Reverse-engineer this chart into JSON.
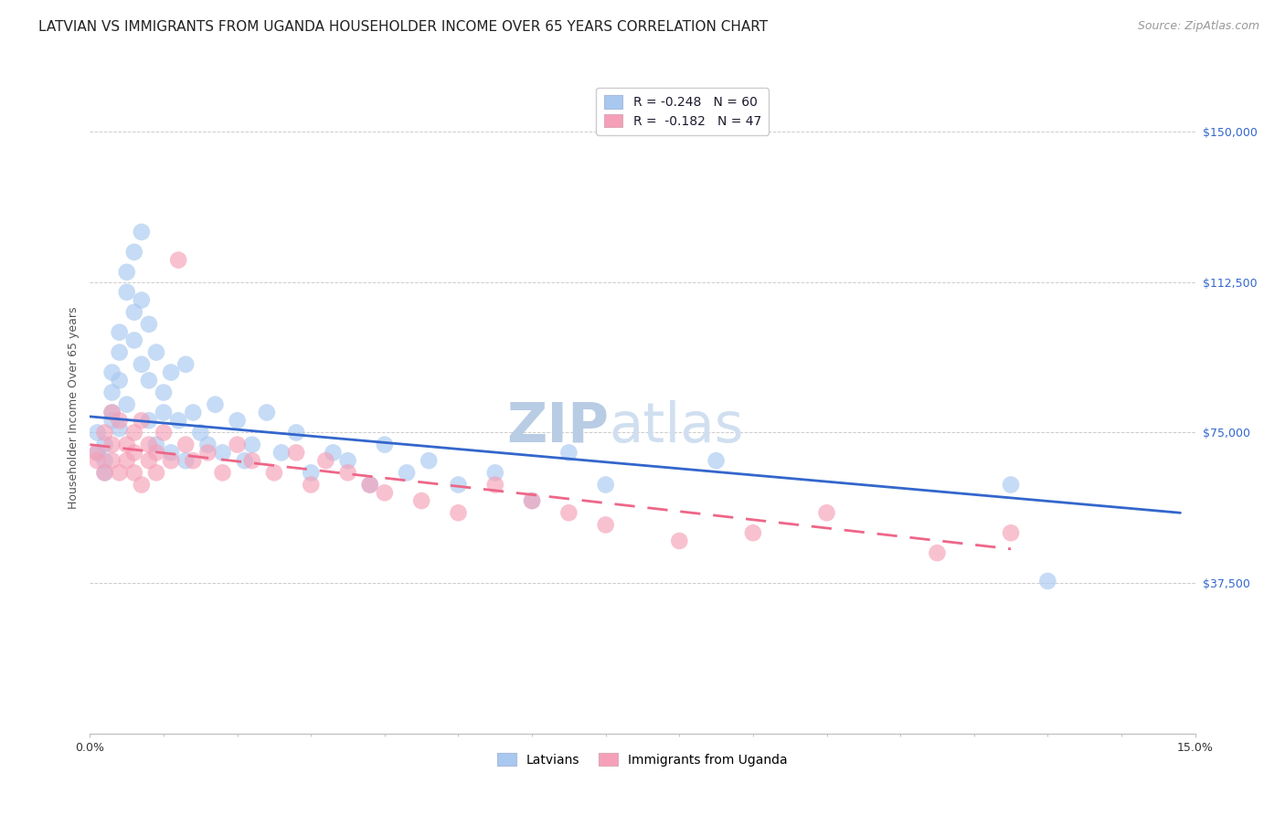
{
  "title": "LATVIAN VS IMMIGRANTS FROM UGANDA HOUSEHOLDER INCOME OVER 65 YEARS CORRELATION CHART",
  "source": "Source: ZipAtlas.com",
  "ylabel": "Householder Income Over 65 years",
  "xlim": [
    0.0,
    0.15
  ],
  "ylim": [
    0,
    162500
  ],
  "yticks": [
    37500,
    75000,
    112500,
    150000
  ],
  "ytick_labels": [
    "$37,500",
    "$75,000",
    "$112,500",
    "$150,000"
  ],
  "color_blue": "#A8C8F0",
  "color_pink": "#F5A0B8",
  "line_color_blue": "#3366CC",
  "line_color_pink": "#EE6688",
  "legend1_r": "R = -0.248",
  "legend1_n": "N = 60",
  "legend2_r": "R =  -0.182",
  "legend2_n": "N = 47",
  "legend_series1": "Latvians",
  "legend_series2": "Immigrants from Uganda",
  "watermark_zip": "ZIP",
  "watermark_atlas": "atlas",
  "title_fontsize": 11,
  "axis_label_fontsize": 9,
  "tick_fontsize": 9,
  "legend_fontsize": 10,
  "source_fontsize": 9,
  "watermark_fontsize": 44,
  "watermark_color": "#D0E4F5",
  "background_color": "#FFFFFF",
  "grid_color": "#CCCCCC",
  "latvian_x": [
    0.001,
    0.001,
    0.002,
    0.002,
    0.002,
    0.003,
    0.003,
    0.003,
    0.003,
    0.004,
    0.004,
    0.004,
    0.004,
    0.005,
    0.005,
    0.005,
    0.006,
    0.006,
    0.006,
    0.007,
    0.007,
    0.007,
    0.008,
    0.008,
    0.008,
    0.009,
    0.009,
    0.01,
    0.01,
    0.011,
    0.011,
    0.012,
    0.013,
    0.013,
    0.014,
    0.015,
    0.016,
    0.017,
    0.018,
    0.02,
    0.021,
    0.022,
    0.024,
    0.026,
    0.028,
    0.03,
    0.033,
    0.035,
    0.038,
    0.04,
    0.043,
    0.046,
    0.05,
    0.055,
    0.06,
    0.065,
    0.07,
    0.085,
    0.125,
    0.13
  ],
  "latvian_y": [
    75000,
    70000,
    72000,
    68000,
    65000,
    80000,
    78000,
    85000,
    90000,
    95000,
    88000,
    100000,
    76000,
    110000,
    115000,
    82000,
    120000,
    105000,
    98000,
    125000,
    108000,
    92000,
    102000,
    88000,
    78000,
    95000,
    72000,
    80000,
    85000,
    90000,
    70000,
    78000,
    92000,
    68000,
    80000,
    75000,
    72000,
    82000,
    70000,
    78000,
    68000,
    72000,
    80000,
    70000,
    75000,
    65000,
    70000,
    68000,
    62000,
    72000,
    65000,
    68000,
    62000,
    65000,
    58000,
    70000,
    62000,
    68000,
    62000,
    38000
  ],
  "uganda_x": [
    0.001,
    0.001,
    0.002,
    0.002,
    0.003,
    0.003,
    0.003,
    0.004,
    0.004,
    0.005,
    0.005,
    0.006,
    0.006,
    0.006,
    0.007,
    0.007,
    0.008,
    0.008,
    0.009,
    0.009,
    0.01,
    0.011,
    0.012,
    0.013,
    0.014,
    0.016,
    0.018,
    0.02,
    0.022,
    0.025,
    0.028,
    0.03,
    0.032,
    0.035,
    0.038,
    0.04,
    0.045,
    0.05,
    0.055,
    0.06,
    0.065,
    0.07,
    0.08,
    0.09,
    0.1,
    0.115,
    0.125
  ],
  "uganda_y": [
    70000,
    68000,
    75000,
    65000,
    80000,
    72000,
    68000,
    78000,
    65000,
    72000,
    68000,
    75000,
    70000,
    65000,
    78000,
    62000,
    72000,
    68000,
    65000,
    70000,
    75000,
    68000,
    118000,
    72000,
    68000,
    70000,
    65000,
    72000,
    68000,
    65000,
    70000,
    62000,
    68000,
    65000,
    62000,
    60000,
    58000,
    55000,
    62000,
    58000,
    55000,
    52000,
    48000,
    50000,
    55000,
    45000,
    50000
  ],
  "blue_line_x0": 0.0,
  "blue_line_x1": 0.148,
  "blue_line_y0": 79000,
  "blue_line_y1": 55000,
  "pink_line_x0": 0.0,
  "pink_line_x1": 0.125,
  "pink_line_y0": 72000,
  "pink_line_y1": 46000
}
